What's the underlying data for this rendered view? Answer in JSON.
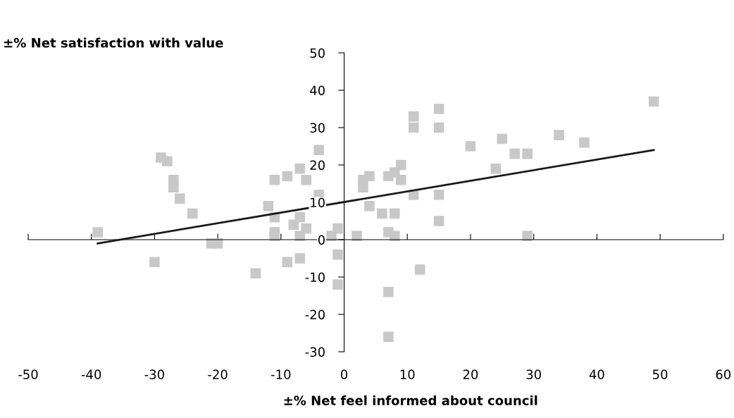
{
  "chart_data": {
    "type": "scatter",
    "ylabel": "±% Net satisfaction with value",
    "xlabel": "±% Net feel informed about council",
    "xlim": [
      -50,
      60
    ],
    "xticks": [
      -50,
      -40,
      -30,
      -20,
      -10,
      0,
      10,
      20,
      30,
      40,
      50,
      60
    ],
    "ylim": [
      -30,
      50
    ],
    "yticks": [
      -30,
      -20,
      -10,
      0,
      10,
      20,
      30,
      40,
      50
    ],
    "legend": false,
    "series": [
      {
        "marker": "square",
        "color": "#c8c8c8",
        "x": [
          -39,
          -30,
          -29,
          -28,
          -27,
          -27,
          -26,
          -24,
          -21,
          -20,
          -14,
          -12,
          -11,
          -11,
          -11,
          -11,
          -9,
          -9,
          -8,
          -7,
          -7,
          -7,
          -7,
          -6,
          -6,
          -4,
          -4,
          -2,
          -1,
          -1,
          -1,
          2,
          3,
          3,
          4,
          4,
          6,
          7,
          7,
          7,
          7,
          8,
          8,
          8,
          9,
          9,
          11,
          11,
          11,
          12,
          15,
          15,
          15,
          15,
          20,
          24,
          25,
          27,
          29,
          29,
          34,
          38,
          49
        ],
        "values": [
          2,
          -6,
          22,
          21,
          16,
          14,
          11,
          7,
          -1,
          -1,
          -9,
          9,
          16,
          6,
          2,
          1,
          17,
          -6,
          4,
          19,
          6,
          1,
          -5,
          16,
          3,
          24,
          12,
          1,
          3,
          -4,
          -12,
          1,
          16,
          14,
          17,
          9,
          7,
          17,
          2,
          -14,
          -26,
          18,
          7,
          1,
          20,
          16,
          33,
          30,
          12,
          -8,
          35,
          30,
          12,
          5,
          25,
          19,
          27,
          23,
          23,
          1,
          28,
          26,
          37
        ]
      },
      {
        "type": "line",
        "marker": "none",
        "color": "#1a1a1a",
        "line_style": "solid",
        "x": [
          -39,
          49
        ],
        "values": [
          -1,
          24
        ]
      }
    ]
  }
}
